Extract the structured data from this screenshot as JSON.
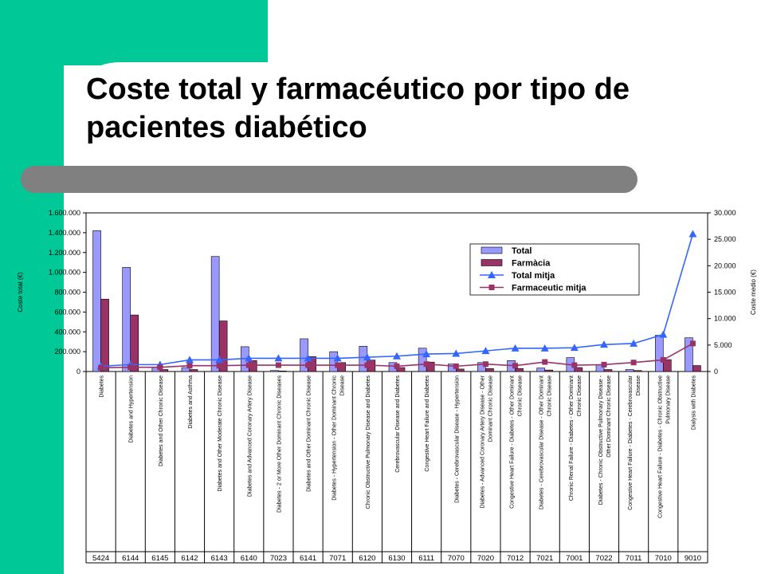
{
  "slide": {
    "title": "Coste total y farmacéutico por tipo de pacientes diabético"
  },
  "colors": {
    "green": "#00c896",
    "gray_bar": "#808080",
    "total": "#9999ff",
    "farmacia": "#993366",
    "total_mitja": "#3366ff",
    "farma_mitja": "#993366"
  },
  "chart_data": {
    "type": "bar",
    "ylabel": "Coste total (€)",
    "y2label": "Coste medio (€)",
    "ylim": [
      0,
      1600000
    ],
    "y2lim": [
      0,
      30000
    ],
    "yticks": [
      "1.600.000",
      "1.400.000",
      "1.200.000",
      "1.000.000",
      "800.000",
      "600.000",
      "400.000",
      "200.000",
      "0"
    ],
    "y2ticks": [
      "30.000",
      "25.000",
      "20.000",
      "15.000",
      "10.000",
      "5.000",
      "0"
    ],
    "legend": [
      "Total",
      "Farmàcia",
      "Total mitja",
      "Farmaceutic mitja"
    ],
    "categories": [
      "Diabetes",
      "Diabetes and Hypertension",
      "Diabetes and Other Chronic Disease",
      "Diabetes and Asthma",
      "Diabetes and Other Moderate Chronic Disease",
      "Diabetes and Advanced Coronary Artery Disease",
      "Diabetes - 2 or More Other Dominant Chronic Diseases",
      "Diabetes and Other Dominant Chronic Disease",
      "Diabetes - Hypertension - Other Dominant Chronic Disease",
      "Chronic Obstructive Pulmonary Disease and Diabetes",
      "Cerebrovascular Disease and Diabetes",
      "Congestive Heart Failure and Diabetes",
      "Diabetes - Cerebrovascular Disease - Hypertension",
      "Diabetes - Advanced Coronary Artery Disease - Other Dominant Chronic Disease",
      "Congestive Heart Failure - Diabetes - Other Dominant Chronic Disease",
      "Diabetes - Cerebrovascular Disease - Other Dominant Chronic Disease",
      "Chronic Renal Failure - Diabetes - Other Dominant Chronic Disease",
      "Diabetes - Chronic Obstructive Pulmonary Disease - Other Dominant Chronic Disease",
      "Congestive Heart Failure - Diabetes - Cerebrovascular Disease",
      "Congestive Heart Failure - Diabetes - Chronic Obstructive Pulmonary Disease",
      "Dialysis with Diabetes"
    ],
    "category_lines": [
      [
        "Diabetes"
      ],
      [
        "Diabetes and Hypertension"
      ],
      [
        "Diabetes and Other Chronic Disease"
      ],
      [
        "Diabetes and Asthma"
      ],
      [
        "Diabetes and Other Moderate Chronic Disease"
      ],
      [
        "Diabetes and Advanced Coronary Artery Disease"
      ],
      [
        "Diabetes - 2 or More Other Dominant Chronic Diseases"
      ],
      [
        "Diabetes and Other Dominant Chronic Disease"
      ],
      [
        "Diabetes - Hypertension - Other Dominant Chronic",
        "Disease"
      ],
      [
        "Chronic Obstructive Pulmonary Disease and Diabetes"
      ],
      [
        "Cerebrovascular Disease and Diabetes"
      ],
      [
        "Congestive Heart Failure and Diabetes"
      ],
      [
        "Diabetes - Cerebrovascular Disease - Hypertension"
      ],
      [
        "Diabetes - Advanced Coronary Artery Disease - Other",
        "Dominant Chronic Disease"
      ],
      [
        "Congestive Heart Failure - Diabetes - Other Dominant",
        "Chronic Disease"
      ],
      [
        "Diabetes - Cerebrovascular Disease - Other Dominant",
        "Chronic Disease"
      ],
      [
        "Chronic Renal Failure - Diabetes - Other Dominant",
        "Chronic Disease"
      ],
      [
        "Diabetes - Chronic Obstructive Pulmonary Disease -",
        "Other Dominant Chronic Disease"
      ],
      [
        "Congestive Heart Failure - Diabetes - Cerebrovascular",
        "Disease"
      ],
      [
        "Congestive Heart Failure - Diabetes - Chronic Obstructive",
        "Pulmonary Disease"
      ],
      [
        "Dialysis with Diabetes"
      ]
    ],
    "codes": [
      "5424",
      "6144",
      "6145",
      "6142",
      "6143",
      "6140",
      "7023",
      "6141",
      "7071",
      "6120",
      "6130",
      "6111",
      "7070",
      "7020",
      "7012",
      "7021",
      "7001",
      "7022",
      "7011",
      "7010",
      "9010"
    ],
    "series": [
      {
        "name": "Total",
        "axis": "left",
        "kind": "bar",
        "values": [
          1420000,
          1050000,
          40000,
          40000,
          1160000,
          250000,
          10000,
          330000,
          200000,
          255000,
          90000,
          235000,
          75000,
          90000,
          110000,
          35000,
          140000,
          70000,
          20000,
          365000,
          340000
        ]
      },
      {
        "name": "Farmàcia",
        "axis": "left",
        "kind": "bar",
        "values": [
          730000,
          570000,
          20000,
          20000,
          510000,
          110000,
          5000,
          150000,
          90000,
          115000,
          40000,
          95000,
          25000,
          30000,
          30000,
          15000,
          40000,
          20000,
          10000,
          120000,
          60000
        ]
      },
      {
        "name": "Total mitja",
        "axis": "right",
        "kind": "line",
        "values": [
          1000,
          1300,
          1300,
          2200,
          2200,
          2500,
          2500,
          2500,
          2500,
          2700,
          2900,
          3300,
          3400,
          3900,
          4400,
          4400,
          4500,
          5100,
          5300,
          7000,
          26000
        ]
      },
      {
        "name": "Farmaceutic mitja",
        "axis": "right",
        "kind": "line",
        "values": [
          700,
          800,
          800,
          1100,
          1100,
          1200,
          1200,
          1200,
          1200,
          1200,
          1000,
          1400,
          1000,
          1400,
          1100,
          1800,
          1200,
          1300,
          1700,
          2200,
          5300
        ]
      }
    ]
  }
}
